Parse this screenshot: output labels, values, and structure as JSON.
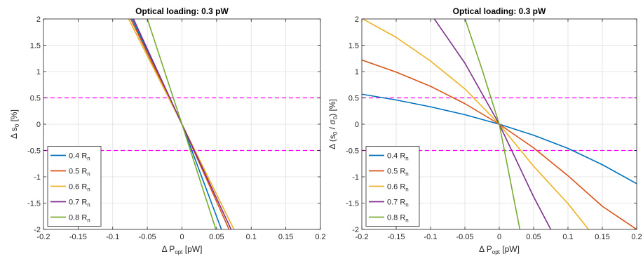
{
  "colors": {
    "series": [
      "#0072BD",
      "#D95319",
      "#EDB120",
      "#7E2F8E",
      "#77AC30"
    ],
    "reference": "#FF00FF",
    "grid": "#DFDFDF",
    "axes": "#262626"
  },
  "chart_data": [
    {
      "type": "line",
      "title": "Optical loading: 0.3 pW",
      "xlabel": {
        "base": "Δ P",
        "sub": "opt",
        "suffix": " [pW]"
      },
      "ylabel": {
        "parts": [
          "Δ s",
          "0",
          " [%]"
        ]
      },
      "xlim": [
        -0.2,
        0.2
      ],
      "ylim": [
        -2,
        2
      ],
      "xticks": [
        -0.2,
        -0.15,
        -0.1,
        -0.05,
        0,
        0.05,
        0.1,
        0.15,
        0.2
      ],
      "xtick_labels": [
        "-0.2",
        "-0.15",
        "-0.1",
        "-0.05",
        "0",
        "0.05",
        "0.1",
        "0.15",
        "0.2"
      ],
      "yticks": [
        -2,
        -1.5,
        -1,
        -0.5,
        0,
        0.5,
        1,
        1.5,
        2
      ],
      "ytick_labels": [
        "-2",
        "-1.5",
        "-1",
        "-0.5",
        "0",
        "0.5",
        "1",
        "1.5",
        "2"
      ],
      "grid": true,
      "legend_position": "bottom-left",
      "reference_lines": [
        0.5,
        -0.5
      ],
      "series": [
        {
          "name": "0.4 R",
          "sub": "n",
          "points": [
            [
              -0.072,
              2.0
            ],
            [
              0,
              0
            ],
            [
              0.057,
              -2.0
            ]
          ]
        },
        {
          "name": "0.5 R",
          "sub": "n",
          "points": [
            [
              -0.074,
              2.0
            ],
            [
              0,
              0
            ],
            [
              0.068,
              -2.0
            ]
          ]
        },
        {
          "name": "0.6 R",
          "sub": "n",
          "points": [
            [
              -0.077,
              2.0
            ],
            [
              0,
              0
            ],
            [
              0.075,
              -2.0
            ]
          ]
        },
        {
          "name": "0.7 R",
          "sub": "n",
          "points": [
            [
              -0.07,
              2.0
            ],
            [
              0,
              0
            ],
            [
              0.071,
              -2.0
            ]
          ]
        },
        {
          "name": "0.8 R",
          "sub": "n",
          "points": [
            [
              -0.05,
              2.0
            ],
            [
              0,
              0
            ],
            [
              0.049,
              -2.0
            ]
          ]
        }
      ]
    },
    {
      "type": "line",
      "title": "Optical loading: 0.3 pW",
      "xlabel": {
        "base": "Δ P",
        "sub": "opt",
        "suffix": " [pW]"
      },
      "ylabel": {
        "parts": [
          "Δ (s",
          "0",
          " / σ",
          "0",
          ") [%]"
        ]
      },
      "xlim": [
        -0.2,
        0.2
      ],
      "ylim": [
        -2,
        2
      ],
      "xticks": [
        -0.2,
        -0.15,
        -0.1,
        -0.05,
        0,
        0.05,
        0.1,
        0.15,
        0.2
      ],
      "xtick_labels": [
        "-0.2",
        "-0.15",
        "-0.1",
        "-0.05",
        "0",
        "0.05",
        "0.1",
        "0.15",
        "0.2"
      ],
      "yticks": [
        -2,
        -1.5,
        -1,
        -0.5,
        0,
        0.5,
        1,
        1.5,
        2
      ],
      "ytick_labels": [
        "-2",
        "-1.5",
        "-1",
        "-0.5",
        "0",
        "0.5",
        "1",
        "1.5",
        "2"
      ],
      "grid": true,
      "legend_position": "bottom-left",
      "reference_lines": [
        0.5,
        -0.5
      ],
      "series": [
        {
          "name": "0.4 R",
          "sub": "n",
          "points": [
            [
              -0.2,
              0.57
            ],
            [
              -0.15,
              0.46
            ],
            [
              -0.1,
              0.33
            ],
            [
              -0.05,
              0.18
            ],
            [
              0,
              0
            ],
            [
              0.05,
              -0.21
            ],
            [
              0.1,
              -0.46
            ],
            [
              0.15,
              -0.77
            ],
            [
              0.2,
              -1.13
            ]
          ]
        },
        {
          "name": "0.5 R",
          "sub": "n",
          "points": [
            [
              -0.2,
              1.22
            ],
            [
              -0.15,
              0.99
            ],
            [
              -0.1,
              0.72
            ],
            [
              -0.05,
              0.39
            ],
            [
              0,
              0
            ],
            [
              0.05,
              -0.45
            ],
            [
              0.1,
              -0.98
            ],
            [
              0.15,
              -1.56
            ],
            [
              0.2,
              -2.0
            ]
          ]
        },
        {
          "name": "0.6 R",
          "sub": "n",
          "points": [
            [
              -0.2,
              2.01
            ],
            [
              -0.15,
              1.65
            ],
            [
              -0.1,
              1.2
            ],
            [
              -0.05,
              0.67
            ],
            [
              0,
              0
            ],
            [
              0.05,
              -0.8
            ],
            [
              0.1,
              -1.51
            ],
            [
              0.13,
              -2.0
            ]
          ]
        },
        {
          "name": "0.7 R",
          "sub": "n",
          "points": [
            [
              -0.095,
              2.01
            ],
            [
              -0.05,
              1.16
            ],
            [
              0,
              0
            ],
            [
              0.05,
              -1.38
            ],
            [
              0.075,
              -2.0
            ]
          ]
        },
        {
          "name": "0.8 R",
          "sub": "n",
          "points": [
            [
              -0.05,
              2.01
            ],
            [
              -0.025,
              1.04
            ],
            [
              0,
              0
            ],
            [
              0.03,
              -2.0
            ]
          ]
        }
      ]
    }
  ]
}
